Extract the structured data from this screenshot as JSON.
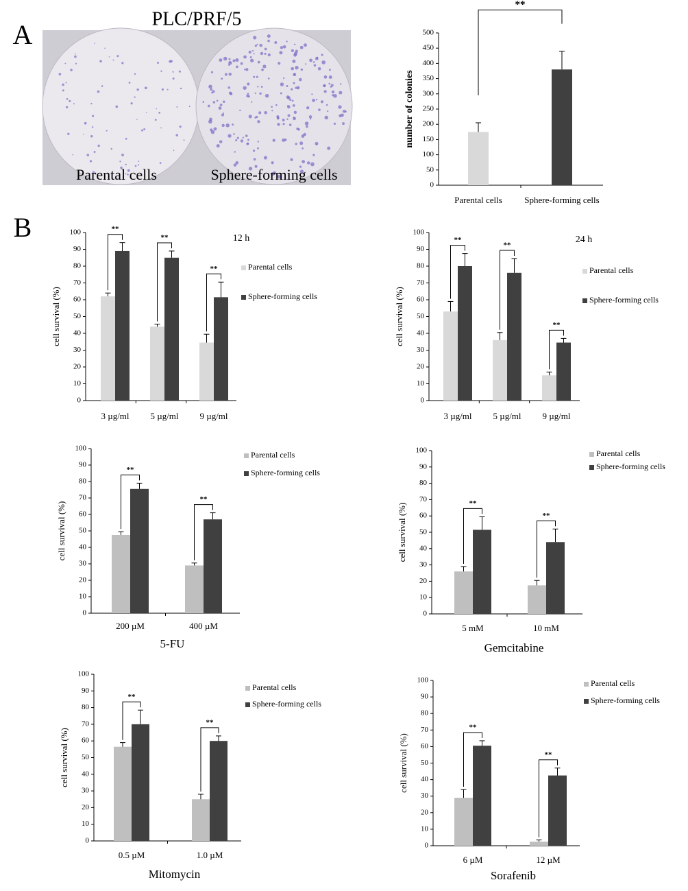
{
  "figure": {
    "panels": [
      "A",
      "B"
    ],
    "photo": {
      "title": "PLC/PRF/5",
      "labels": [
        "Parental cells",
        "Sphere-forming cells"
      ]
    }
  },
  "chart_data": [
    {
      "type": "bar",
      "ylabel": "number of colonies",
      "categories": [
        "Parental cells",
        "Sphere-forming cells"
      ],
      "values": [
        175,
        380
      ],
      "errors": [
        30,
        60
      ],
      "colors": [
        "#d9d9d9",
        "#404040"
      ],
      "significance": [
        "**"
      ],
      "ylim": [
        0,
        500
      ],
      "yticks": [
        0,
        50,
        100,
        150,
        200,
        250,
        300,
        350,
        400,
        450,
        500
      ]
    },
    {
      "type": "bar",
      "title": "12 h",
      "ylabel": "cell survival (%)",
      "categories": [
        "3 µg/ml",
        "5 µg/ml",
        "9 µg/ml"
      ],
      "series": [
        {
          "name": "Parental cells",
          "color": "#d9d9d9",
          "values": [
            62,
            44,
            34.5
          ],
          "errors": [
            2,
            1.5,
            5
          ]
        },
        {
          "name": "Sphere-forming cells",
          "color": "#404040",
          "values": [
            89,
            85,
            61.5
          ],
          "errors": [
            5,
            4,
            9
          ]
        }
      ],
      "significance": [
        "**",
        "**",
        "**"
      ],
      "ylim": [
        0,
        100
      ],
      "yticks": [
        0,
        10,
        20,
        30,
        40,
        50,
        60,
        70,
        80,
        90,
        100
      ]
    },
    {
      "type": "bar",
      "title": "24 h",
      "ylabel": "cell survival (%)",
      "categories": [
        "3 µg/ml",
        "5 µg/ml",
        "9 µg/ml"
      ],
      "series": [
        {
          "name": "Parental cells",
          "color": "#d9d9d9",
          "values": [
            53,
            36,
            15
          ],
          "errors": [
            6,
            4.5,
            2
          ]
        },
        {
          "name": "Sphere-forming cells",
          "color": "#404040",
          "values": [
            80,
            76,
            34.5
          ],
          "errors": [
            7.5,
            8.5,
            2.5
          ]
        }
      ],
      "significance": [
        "**",
        "**",
        "**"
      ],
      "ylim": [
        0,
        100
      ],
      "yticks": [
        0,
        10,
        20,
        30,
        40,
        50,
        60,
        70,
        80,
        90,
        100
      ]
    },
    {
      "type": "bar",
      "xlabel": "5-FU",
      "ylabel": "cell survival (%)",
      "categories": [
        "200 µM",
        "400 µM"
      ],
      "series": [
        {
          "name": "Parental cells",
          "color": "#bfbfbf",
          "values": [
            47.5,
            29
          ],
          "errors": [
            2,
            1.5
          ]
        },
        {
          "name": "Sphere-forming cells",
          "color": "#404040",
          "values": [
            75.5,
            57
          ],
          "errors": [
            3.5,
            4
          ]
        }
      ],
      "significance": [
        "**",
        "**"
      ],
      "ylim": [
        0,
        100
      ],
      "yticks": [
        0,
        10,
        20,
        30,
        40,
        50,
        60,
        70,
        80,
        90,
        100
      ]
    },
    {
      "type": "bar",
      "xlabel": "Gemcitabine",
      "ylabel": "cell survival (%)",
      "categories": [
        "5 mM",
        "10 mM"
      ],
      "series": [
        {
          "name": "Parental cells",
          "color": "#bfbfbf",
          "values": [
            26,
            17.5
          ],
          "errors": [
            3,
            3
          ]
        },
        {
          "name": "Sphere-forming cells",
          "color": "#404040",
          "values": [
            51.5,
            44
          ],
          "errors": [
            8,
            8
          ]
        }
      ],
      "significance": [
        "**",
        "**"
      ],
      "ylim": [
        0,
        100
      ],
      "yticks": [
        0,
        10,
        20,
        30,
        40,
        50,
        60,
        70,
        80,
        90,
        100
      ]
    },
    {
      "type": "bar",
      "xlabel": "Mitomycin",
      "ylabel": "cell survival (%)",
      "categories": [
        "0.5 µM",
        "1.0 µM"
      ],
      "series": [
        {
          "name": "Parental cells",
          "color": "#bfbfbf",
          "values": [
            56.5,
            25
          ],
          "errors": [
            2.5,
            3
          ]
        },
        {
          "name": "Sphere-forming cells",
          "color": "#404040",
          "values": [
            70,
            60
          ],
          "errors": [
            8.5,
            3
          ]
        }
      ],
      "significance": [
        "**",
        "**"
      ],
      "ylim": [
        0,
        100
      ],
      "yticks": [
        0,
        10,
        20,
        30,
        40,
        50,
        60,
        70,
        80,
        90,
        100
      ]
    },
    {
      "type": "bar",
      "xlabel": "Sorafenib",
      "ylabel": "cell survival (%)",
      "categories": [
        "6 µM",
        "12 µM"
      ],
      "series": [
        {
          "name": "Parental cells",
          "color": "#bfbfbf",
          "values": [
            29,
            2.5
          ],
          "errors": [
            5,
            1
          ]
        },
        {
          "name": "Sphere-forming cells",
          "color": "#404040",
          "values": [
            60.5,
            42.5
          ],
          "errors": [
            3,
            4.5
          ]
        }
      ],
      "significance": [
        "**",
        "**"
      ],
      "ylim": [
        0,
        100
      ],
      "yticks": [
        0,
        10,
        20,
        30,
        40,
        50,
        60,
        70,
        80,
        90,
        100
      ]
    }
  ]
}
